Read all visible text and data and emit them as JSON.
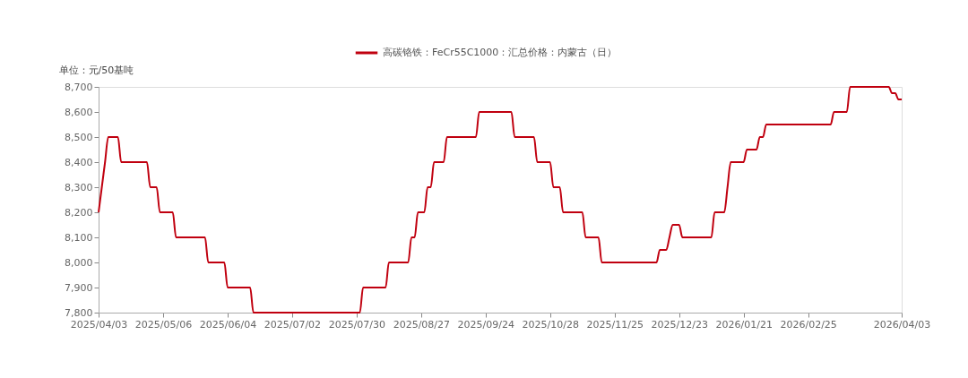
{
  "chart_data": {
    "type": "line",
    "ylabel": "单位：元/50基吨",
    "categories": [
      "2025/04/03",
      null,
      null,
      null,
      null,
      null,
      null,
      null,
      null,
      null,
      null,
      null,
      null,
      null,
      null,
      null,
      null,
      null,
      null,
      null,
      "2025/05/06",
      null,
      null,
      null,
      null,
      null,
      null,
      null,
      null,
      null,
      null,
      null,
      null,
      null,
      null,
      null,
      null,
      null,
      null,
      null,
      "2025/06/04",
      null,
      null,
      null,
      null,
      null,
      null,
      null,
      null,
      null,
      null,
      null,
      null,
      null,
      null,
      null,
      null,
      null,
      null,
      null,
      "2025/07/02",
      null,
      null,
      null,
      null,
      null,
      null,
      null,
      null,
      null,
      null,
      null,
      null,
      null,
      null,
      null,
      null,
      null,
      null,
      null,
      "2025/07/30",
      null,
      null,
      null,
      null,
      null,
      null,
      null,
      null,
      null,
      null,
      null,
      null,
      null,
      null,
      null,
      null,
      null,
      null,
      null,
      "2025/08/27",
      null,
      null,
      null,
      null,
      null,
      null,
      null,
      null,
      null,
      null,
      null,
      null,
      null,
      null,
      null,
      null,
      null,
      null,
      null,
      "2025/09/24",
      null,
      null,
      null,
      null,
      null,
      null,
      null,
      null,
      null,
      null,
      null,
      null,
      null,
      null,
      null,
      null,
      null,
      null,
      null,
      "2025/10/28",
      null,
      null,
      null,
      null,
      null,
      null,
      null,
      null,
      null,
      null,
      null,
      null,
      null,
      null,
      null,
      null,
      null,
      null,
      null,
      "2025/11/25",
      null,
      null,
      null,
      null,
      null,
      null,
      null,
      null,
      null,
      null,
      null,
      null,
      null,
      null,
      null,
      null,
      null,
      null,
      null,
      "2025/12/23",
      null,
      null,
      null,
      null,
      null,
      null,
      null,
      null,
      null,
      null,
      null,
      null,
      null,
      null,
      null,
      null,
      null,
      null,
      null,
      "2026/01/21",
      null,
      null,
      null,
      null,
      null,
      null,
      null,
      null,
      null,
      null,
      null,
      null,
      null,
      null,
      null,
      null,
      null,
      null,
      null,
      "2026/02/25",
      null,
      null,
      null,
      null,
      null,
      null,
      null,
      null,
      null,
      null,
      null,
      null,
      null,
      null,
      null,
      null,
      null,
      null,
      null,
      null,
      null,
      null,
      null,
      null,
      null,
      null,
      null,
      null,
      "2026/04/03"
    ],
    "series": [
      {
        "name": "高碳铬铁：FeCr55C1000：汇总价格：内蒙古（日）",
        "color": "#c0000f",
        "values": [
          8200,
          8300,
          8400,
          8500,
          8500,
          8500,
          8500,
          8400,
          8400,
          8400,
          8400,
          8400,
          8400,
          8400,
          8400,
          8400,
          8300,
          8300,
          8300,
          8200,
          8200,
          8200,
          8200,
          8200,
          8100,
          8100,
          8100,
          8100,
          8100,
          8100,
          8100,
          8100,
          8100,
          8100,
          8000,
          8000,
          8000,
          8000,
          8000,
          8000,
          7900,
          7900,
          7900,
          7900,
          7900,
          7900,
          7900,
          7900,
          7800,
          7800,
          7800,
          7800,
          7800,
          7800,
          7800,
          7800,
          7800,
          7800,
          7800,
          7800,
          7800,
          7800,
          7800,
          7800,
          7800,
          7800,
          7800,
          7800,
          7800,
          7800,
          7800,
          7800,
          7800,
          7800,
          7800,
          7800,
          7800,
          7800,
          7800,
          7800,
          7800,
          7800,
          7900,
          7900,
          7900,
          7900,
          7900,
          7900,
          7900,
          7900,
          8000,
          8000,
          8000,
          8000,
          8000,
          8000,
          8000,
          8100,
          8100,
          8200,
          8200,
          8200,
          8300,
          8300,
          8400,
          8400,
          8400,
          8400,
          8500,
          8500,
          8500,
          8500,
          8500,
          8500,
          8500,
          8500,
          8500,
          8500,
          8600,
          8600,
          8600,
          8600,
          8600,
          8600,
          8600,
          8600,
          8600,
          8600,
          8600,
          8500,
          8500,
          8500,
          8500,
          8500,
          8500,
          8500,
          8400,
          8400,
          8400,
          8400,
          8400,
          8300,
          8300,
          8300,
          8200,
          8200,
          8200,
          8200,
          8200,
          8200,
          8200,
          8100,
          8100,
          8100,
          8100,
          8100,
          8000,
          8000,
          8000,
          8000,
          8000,
          8000,
          8000,
          8000,
          8000,
          8000,
          8000,
          8000,
          8000,
          8000,
          8000,
          8000,
          8000,
          8000,
          8050,
          8050,
          8050,
          8100,
          8150,
          8150,
          8150,
          8100,
          8100,
          8100,
          8100,
          8100,
          8100,
          8100,
          8100,
          8100,
          8100,
          8200,
          8200,
          8200,
          8200,
          8300,
          8400,
          8400,
          8400,
          8400,
          8400,
          8450,
          8450,
          8450,
          8450,
          8500,
          8500,
          8550,
          8550,
          8550,
          8550,
          8550,
          8550,
          8550,
          8550,
          8550,
          8550,
          8550,
          8550,
          8550,
          8550,
          8550,
          8550,
          8550,
          8550,
          8550,
          8550,
          8550,
          8600,
          8600,
          8600,
          8600,
          8600,
          8700,
          8700,
          8700,
          8700,
          8700,
          8700,
          8700,
          8700,
          8700,
          8700,
          8700,
          8700,
          8700,
          8675,
          8675,
          8650,
          8650
        ]
      }
    ],
    "ylim": [
      7800,
      8700
    ],
    "yticks": [
      {
        "value": 7800,
        "label": "7,800"
      },
      {
        "value": 7900,
        "label": "7,900"
      },
      {
        "value": 8000,
        "label": "8,000"
      },
      {
        "value": 8100,
        "label": "8,100"
      },
      {
        "value": 8200,
        "label": "8,200"
      },
      {
        "value": 8300,
        "label": "8,300"
      },
      {
        "value": 8400,
        "label": "8,400"
      },
      {
        "value": 8500,
        "label": "8,500"
      },
      {
        "value": 8600,
        "label": "8,600"
      },
      {
        "value": 8700,
        "label": "8,700"
      }
    ],
    "grid": false,
    "legend": "top",
    "marker": "none",
    "line_style": "solid"
  }
}
